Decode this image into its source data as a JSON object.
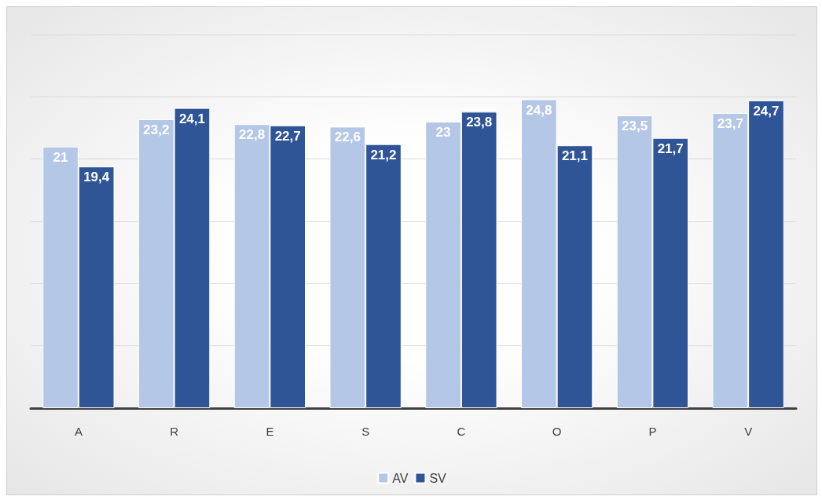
{
  "chart_data": {
    "type": "bar",
    "categories": [
      "A",
      "R",
      "E",
      "S",
      "C",
      "O",
      "P",
      "V"
    ],
    "series": [
      {
        "name": "AV",
        "color": "#b4c7e7",
        "values": [
          21,
          23.2,
          22.8,
          22.6,
          23,
          24.8,
          23.5,
          23.7
        ],
        "value_labels": [
          "21",
          "23,2",
          "22,8",
          "22,6",
          "23",
          "24,8",
          "23,5",
          "23,7"
        ]
      },
      {
        "name": "SV",
        "color": "#2f5597",
        "values": [
          19.4,
          24.1,
          22.7,
          21.2,
          23.8,
          21.1,
          21.7,
          24.7
        ],
        "value_labels": [
          "19,4",
          "24,1",
          "22,7",
          "21,2",
          "23,8",
          "21,1",
          "21,7",
          "24,7"
        ]
      }
    ],
    "ylim": [
      0,
      30
    ],
    "yticks": [
      {
        "value": 0,
        "label": null
      },
      {
        "value": 5,
        "label": null
      },
      {
        "value": 10,
        "label": null
      },
      {
        "value": 15,
        "label": null
      },
      {
        "value": 20,
        "label": null
      },
      {
        "value": 25,
        "label": null
      },
      {
        "value": 30,
        "label": null
      }
    ],
    "grid": "y",
    "tick_labels": "x",
    "legend": "bottom"
  }
}
